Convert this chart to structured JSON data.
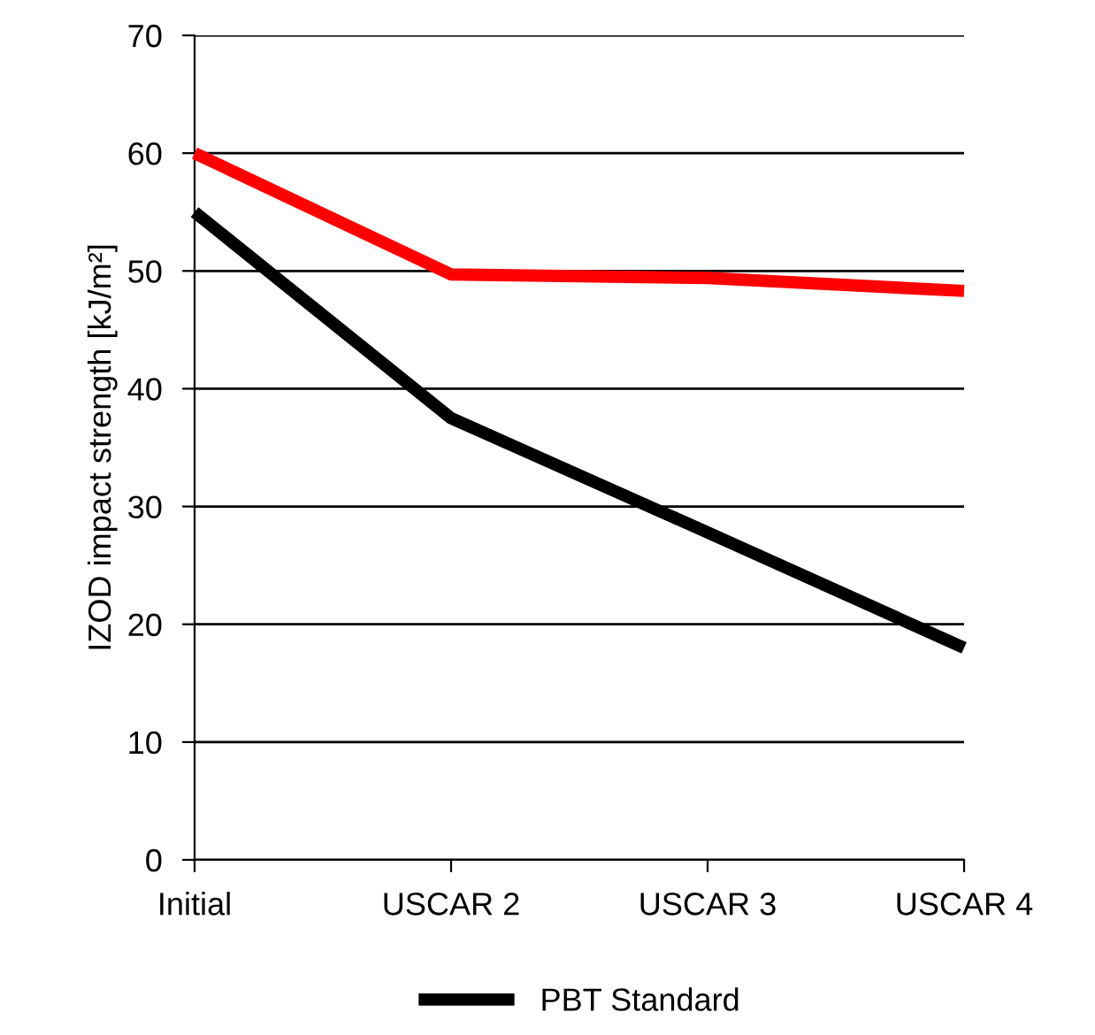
{
  "chart_data": {
    "type": "line",
    "ylabel": "IZOD impact strength [kJ/m²]",
    "categories": [
      "Initial",
      "USCAR 2",
      "USCAR 3",
      "USCAR 4"
    ],
    "series": [
      {
        "color": "#ff0000",
        "values": [
          60,
          49.7,
          49.4,
          48.3
        ]
      },
      {
        "name": "PBT Standard",
        "color": "#000000",
        "values": [
          55,
          37.5,
          27.8,
          18
        ]
      }
    ],
    "ylim": [
      0,
      70
    ],
    "yticks": [
      0,
      10,
      20,
      30,
      40,
      50,
      60,
      70
    ],
    "grid": "y",
    "legend": "bottom",
    "marker": "none",
    "line_style": "solid"
  }
}
